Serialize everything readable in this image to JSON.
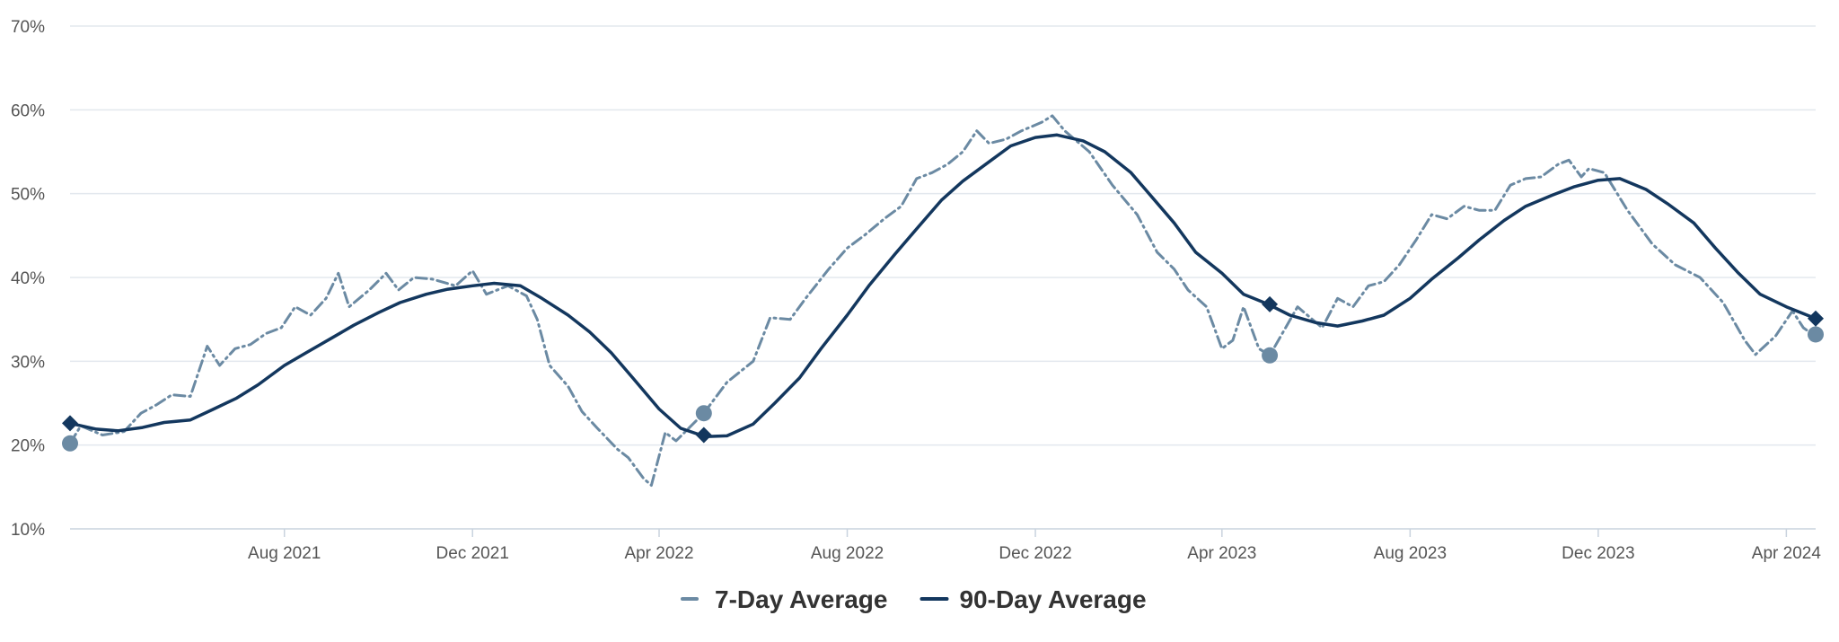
{
  "chart_data": {
    "type": "line",
    "title": "",
    "xlabel": "",
    "ylabel": "",
    "ylim": [
      10,
      70
    ],
    "xlim": [
      "2021-03-15",
      "2024-04-20"
    ],
    "y_ticks": [
      10,
      20,
      30,
      40,
      50,
      60,
      70
    ],
    "y_tick_labels": [
      "10%",
      "20%",
      "30%",
      "40%",
      "50%",
      "60%",
      "70%"
    ],
    "x_ticks": [
      "2021-08-01",
      "2021-12-01",
      "2022-04-01",
      "2022-08-01",
      "2022-12-01",
      "2023-04-01",
      "2023-08-01",
      "2023-12-01",
      "2024-04-01"
    ],
    "x_tick_labels": [
      "Aug 2021",
      "Dec 2021",
      "Apr 2022",
      "Aug 2022",
      "Dec 2022",
      "Apr 2023",
      "Aug 2023",
      "Dec 2023",
      "Apr 2024"
    ],
    "grid": true,
    "legend": "bottom-center",
    "series": [
      {
        "name": "7-Day Average",
        "color": "#6b8aa3",
        "style": "dashed",
        "marker": "circle",
        "points": [
          [
            "2021-03-15",
            20.2
          ],
          [
            "2021-03-22",
            22.3
          ],
          [
            "2021-04-05",
            21.2
          ],
          [
            "2021-04-19",
            21.6
          ],
          [
            "2021-04-30",
            23.8
          ],
          [
            "2021-05-10",
            24.8
          ],
          [
            "2021-05-20",
            26.0
          ],
          [
            "2021-06-01",
            25.8
          ],
          [
            "2021-06-12",
            31.8
          ],
          [
            "2021-06-20",
            29.5
          ],
          [
            "2021-06-30",
            31.5
          ],
          [
            "2021-07-10",
            32.0
          ],
          [
            "2021-07-20",
            33.3
          ],
          [
            "2021-07-30",
            34.0
          ],
          [
            "2021-08-08",
            36.5
          ],
          [
            "2021-08-18",
            35.5
          ],
          [
            "2021-08-28",
            37.5
          ],
          [
            "2021-09-05",
            40.5
          ],
          [
            "2021-09-12",
            36.5
          ],
          [
            "2021-09-25",
            38.5
          ],
          [
            "2021-10-06",
            40.5
          ],
          [
            "2021-10-14",
            38.5
          ],
          [
            "2021-10-24",
            40.0
          ],
          [
            "2021-11-05",
            39.8
          ],
          [
            "2021-11-20",
            39.0
          ],
          [
            "2021-12-01",
            40.8
          ],
          [
            "2021-12-10",
            38.0
          ],
          [
            "2021-12-24",
            39.0
          ],
          [
            "2022-01-05",
            37.8
          ],
          [
            "2022-01-12",
            35.0
          ],
          [
            "2022-01-20",
            29.5
          ],
          [
            "2022-02-01",
            27.0
          ],
          [
            "2022-02-10",
            24.0
          ],
          [
            "2022-02-20",
            22.0
          ],
          [
            "2022-03-05",
            19.5
          ],
          [
            "2022-03-12",
            18.5
          ],
          [
            "2022-03-22",
            16.0
          ],
          [
            "2022-03-27",
            15.2
          ],
          [
            "2022-04-05",
            21.5
          ],
          [
            "2022-04-12",
            20.5
          ],
          [
            "2022-04-30",
            23.8
          ],
          [
            "2022-05-15",
            27.5
          ],
          [
            "2022-06-01",
            30.0
          ],
          [
            "2022-06-12",
            35.2
          ],
          [
            "2022-06-25",
            35.0
          ],
          [
            "2022-07-05",
            37.5
          ],
          [
            "2022-07-20",
            41.0
          ],
          [
            "2022-08-01",
            43.5
          ],
          [
            "2022-08-12",
            45.0
          ],
          [
            "2022-08-25",
            47.0
          ],
          [
            "2022-09-05",
            48.5
          ],
          [
            "2022-09-15",
            51.8
          ],
          [
            "2022-09-25",
            52.5
          ],
          [
            "2022-10-05",
            53.5
          ],
          [
            "2022-10-15",
            55.0
          ],
          [
            "2022-10-24",
            57.5
          ],
          [
            "2022-11-01",
            56.0
          ],
          [
            "2022-11-12",
            56.5
          ],
          [
            "2022-11-22",
            57.5
          ],
          [
            "2022-12-05",
            58.5
          ],
          [
            "2022-12-12",
            59.3
          ],
          [
            "2022-12-20",
            57.5
          ],
          [
            "2023-01-05",
            55.0
          ],
          [
            "2023-01-20",
            51.0
          ],
          [
            "2023-02-05",
            47.5
          ],
          [
            "2023-02-18",
            43.0
          ],
          [
            "2023-03-01",
            41.0
          ],
          [
            "2023-03-10",
            38.5
          ],
          [
            "2023-03-22",
            36.5
          ],
          [
            "2023-04-01",
            31.5
          ],
          [
            "2023-04-08",
            32.5
          ],
          [
            "2023-04-15",
            36.5
          ],
          [
            "2023-04-25",
            31.5
          ],
          [
            "2023-05-02",
            30.7
          ],
          [
            "2023-05-20",
            36.5
          ],
          [
            "2023-06-05",
            34.0
          ],
          [
            "2023-06-15",
            37.5
          ],
          [
            "2023-06-25",
            36.5
          ],
          [
            "2023-07-05",
            39.0
          ],
          [
            "2023-07-15",
            39.5
          ],
          [
            "2023-07-25",
            41.5
          ],
          [
            "2023-08-05",
            44.5
          ],
          [
            "2023-08-15",
            47.5
          ],
          [
            "2023-08-25",
            47.0
          ],
          [
            "2023-09-05",
            48.5
          ],
          [
            "2023-09-15",
            48.0
          ],
          [
            "2023-09-25",
            48.0
          ],
          [
            "2023-10-05",
            51.0
          ],
          [
            "2023-10-15",
            51.8
          ],
          [
            "2023-10-25",
            52.0
          ],
          [
            "2023-11-05",
            53.5
          ],
          [
            "2023-11-12",
            54.0
          ],
          [
            "2023-11-20",
            52.0
          ],
          [
            "2023-11-25",
            53.0
          ],
          [
            "2023-12-05",
            52.5
          ],
          [
            "2023-12-20",
            48.0
          ],
          [
            "2024-01-05",
            44.0
          ],
          [
            "2024-01-20",
            41.5
          ],
          [
            "2024-02-05",
            40.0
          ],
          [
            "2024-02-20",
            37.0
          ],
          [
            "2024-03-05",
            32.5
          ],
          [
            "2024-03-12",
            30.8
          ],
          [
            "2024-03-25",
            33.0
          ],
          [
            "2024-04-05",
            36.0
          ],
          [
            "2024-04-12",
            34.0
          ],
          [
            "2024-04-18",
            33.2
          ]
        ]
      },
      {
        "name": "90-Day Average",
        "color": "#13375e",
        "style": "solid",
        "marker": "diamond",
        "points": [
          [
            "2021-03-15",
            22.6
          ],
          [
            "2021-04-01",
            21.9
          ],
          [
            "2021-04-15",
            21.7
          ],
          [
            "2021-05-01",
            22.1
          ],
          [
            "2021-05-15",
            22.7
          ],
          [
            "2021-06-01",
            23.0
          ],
          [
            "2021-06-15",
            24.2
          ],
          [
            "2021-07-01",
            25.6
          ],
          [
            "2021-07-15",
            27.2
          ],
          [
            "2021-08-01",
            29.5
          ],
          [
            "2021-08-15",
            31.0
          ],
          [
            "2021-09-01",
            32.8
          ],
          [
            "2021-09-15",
            34.3
          ],
          [
            "2021-10-01",
            35.8
          ],
          [
            "2021-10-15",
            37.0
          ],
          [
            "2021-11-01",
            38.0
          ],
          [
            "2021-11-15",
            38.6
          ],
          [
            "2021-12-01",
            39.0
          ],
          [
            "2021-12-15",
            39.3
          ],
          [
            "2022-01-01",
            39.0
          ],
          [
            "2022-01-15",
            37.5
          ],
          [
            "2022-02-01",
            35.5
          ],
          [
            "2022-02-15",
            33.5
          ],
          [
            "2022-03-01",
            31.0
          ],
          [
            "2022-03-15",
            28.0
          ],
          [
            "2022-04-01",
            24.3
          ],
          [
            "2022-04-15",
            22.0
          ],
          [
            "2022-05-01",
            21.0
          ],
          [
            "2022-05-15",
            21.1
          ],
          [
            "2022-06-01",
            22.5
          ],
          [
            "2022-06-15",
            25.0
          ],
          [
            "2022-07-01",
            28.0
          ],
          [
            "2022-07-15",
            31.5
          ],
          [
            "2022-08-01",
            35.5
          ],
          [
            "2022-08-15",
            39.0
          ],
          [
            "2022-09-01",
            42.8
          ],
          [
            "2022-09-15",
            45.8
          ],
          [
            "2022-10-01",
            49.2
          ],
          [
            "2022-10-15",
            51.5
          ],
          [
            "2022-11-01",
            53.8
          ],
          [
            "2022-11-15",
            55.7
          ],
          [
            "2022-12-01",
            56.7
          ],
          [
            "2022-12-15",
            57.0
          ],
          [
            "2023-01-01",
            56.3
          ],
          [
            "2023-01-15",
            55.0
          ],
          [
            "2023-02-01",
            52.5
          ],
          [
            "2023-02-15",
            49.5
          ],
          [
            "2023-03-01",
            46.5
          ],
          [
            "2023-03-15",
            43.0
          ],
          [
            "2023-04-01",
            40.5
          ],
          [
            "2023-04-15",
            38.0
          ],
          [
            "2023-05-01",
            36.8
          ],
          [
            "2023-05-15",
            35.5
          ],
          [
            "2023-06-01",
            34.6
          ],
          [
            "2023-06-15",
            34.2
          ],
          [
            "2023-07-01",
            34.8
          ],
          [
            "2023-07-15",
            35.5
          ],
          [
            "2023-08-01",
            37.5
          ],
          [
            "2023-08-15",
            39.8
          ],
          [
            "2023-09-01",
            42.3
          ],
          [
            "2023-09-15",
            44.5
          ],
          [
            "2023-10-01",
            46.8
          ],
          [
            "2023-10-15",
            48.5
          ],
          [
            "2023-11-01",
            49.8
          ],
          [
            "2023-11-15",
            50.8
          ],
          [
            "2023-12-01",
            51.6
          ],
          [
            "2023-12-15",
            51.8
          ],
          [
            "2024-01-01",
            50.5
          ],
          [
            "2024-01-15",
            48.8
          ],
          [
            "2024-02-01",
            46.5
          ],
          [
            "2024-02-15",
            43.5
          ],
          [
            "2024-03-01",
            40.5
          ],
          [
            "2024-03-15",
            38.0
          ],
          [
            "2024-04-01",
            36.5
          ],
          [
            "2024-04-20",
            35.1
          ]
        ]
      }
    ],
    "markers": [
      {
        "series": 0,
        "date": "2021-03-15",
        "value": 20.2
      },
      {
        "series": 0,
        "date": "2022-04-30",
        "value": 23.8
      },
      {
        "series": 0,
        "date": "2023-05-02",
        "value": 30.7
      },
      {
        "series": 0,
        "date": "2024-04-20",
        "value": 33.2
      },
      {
        "series": 1,
        "date": "2021-03-15",
        "value": 22.6
      },
      {
        "series": 1,
        "date": "2022-04-30",
        "value": 21.2
      },
      {
        "series": 1,
        "date": "2023-05-02",
        "value": 36.8
      },
      {
        "series": 1,
        "date": "2024-04-20",
        "value": 35.1
      }
    ]
  }
}
